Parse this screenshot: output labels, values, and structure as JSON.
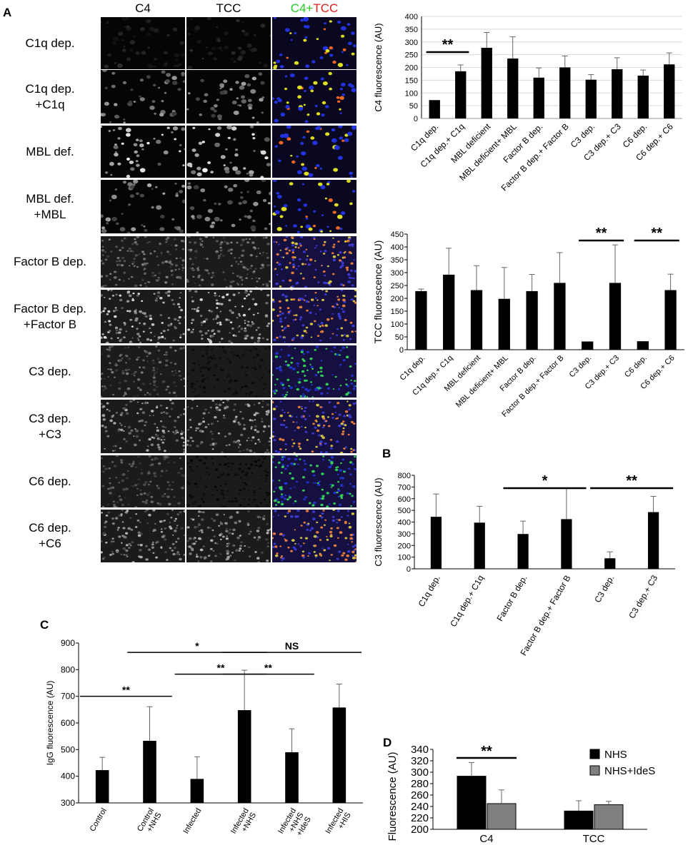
{
  "panelA": {
    "letter": "A",
    "column_headers": [
      "C4",
      "TCC"
    ],
    "merge_header": {
      "part1": "C4",
      "plus": "+",
      "part2": "TCC",
      "color1": "#22cc22",
      "color2": "#e02020"
    },
    "rows": [
      {
        "l1": "C1q dep.",
        "l2": ""
      },
      {
        "l1": "C1q dep.",
        "l2": "+C1q"
      },
      {
        "l1": "MBL def.",
        "l2": ""
      },
      {
        "l1": "MBL def.",
        "l2": "+MBL"
      },
      {
        "l1": "Factor B dep.",
        "l2": ""
      },
      {
        "l1": "Factor B dep.",
        "l2": "+Factor B"
      },
      {
        "l1": "C3 dep.",
        "l2": ""
      },
      {
        "l1": "C3 dep.",
        "l2": "+C3"
      },
      {
        "l1": "C6 dep.",
        "l2": ""
      },
      {
        "l1": "C6 dep.",
        "l2": "+C6"
      }
    ]
  },
  "letters": {
    "B": "B",
    "C": "C",
    "D": "D"
  },
  "chart_data": [
    {
      "id": "c4",
      "type": "bar",
      "ylabel": "C4 fluorescence (AU)",
      "ylim": [
        0,
        400
      ],
      "yticks": [
        0,
        50,
        100,
        150,
        200,
        250,
        300,
        350,
        400
      ],
      "categories": [
        "C1q dep.",
        "C1q dep.+ C1q",
        "MBL deficient",
        "MBL deficient+ MBL",
        "Factor B dep.",
        "Factor B dep.+ Factor B",
        "C3 dep.",
        "C3 dep.+ C3",
        "C6 dep.",
        "C6 dep.+ C6"
      ],
      "values": [
        72,
        185,
        277,
        235,
        160,
        200,
        152,
        193,
        168,
        212
      ],
      "errors": [
        0,
        25,
        60,
        85,
        38,
        45,
        20,
        45,
        22,
        45
      ],
      "significance": [
        {
          "from": 0,
          "to": 1,
          "y": 260,
          "label": "**"
        }
      ]
    },
    {
      "id": "tcc",
      "type": "bar",
      "ylabel": "TCC fluorescence (AU)",
      "ylim": [
        0,
        450
      ],
      "yticks": [
        0,
        50,
        100,
        150,
        200,
        250,
        300,
        350,
        400,
        450
      ],
      "categories": [
        "C1q dep.",
        "C1q dep.+ C1q",
        "MBL deficient",
        "MBL deficient+ MBL",
        "Factor B dep.",
        "Factor B dep.+ Factor B",
        "C3 dep.",
        "C3 dep.+ C3",
        "C6 dep.",
        "C6 dep.+ C6"
      ],
      "values": [
        228,
        292,
        232,
        198,
        228,
        260,
        32,
        260,
        33,
        232
      ],
      "errors": [
        8,
        103,
        95,
        122,
        65,
        118,
        0,
        148,
        0,
        62
      ],
      "significance": [
        {
          "from": 6,
          "to": 7,
          "y": 425,
          "label": "**"
        },
        {
          "from": 8,
          "to": 9,
          "y": 425,
          "label": "**"
        }
      ]
    },
    {
      "id": "c3",
      "type": "bar",
      "ylabel": "C3 fluorescence (AU)",
      "ylim": [
        0,
        800
      ],
      "yticks": [
        0,
        100,
        200,
        300,
        400,
        500,
        600,
        700,
        800
      ],
      "categories": [
        "C1q dep.",
        "C1q dep.+ C1q",
        "Factor B dep.",
        "Factor B dep.+ Factor B",
        "C3 dep.",
        "C3 dep.+ C3"
      ],
      "values": [
        445,
        395,
        298,
        425,
        90,
        485
      ],
      "errors": [
        195,
        140,
        110,
        265,
        55,
        135
      ],
      "significance": [
        {
          "from": 2,
          "to": 3,
          "y": 690,
          "label": "*"
        },
        {
          "from": 4,
          "to": 5,
          "y": 690,
          "label": "**"
        }
      ]
    },
    {
      "id": "igg",
      "type": "bar",
      "ylabel": "IgG fluorescence (AU)",
      "ylim": [
        300,
        900
      ],
      "yticks": [
        300,
        400,
        500,
        600,
        700,
        800,
        900
      ],
      "categories": [
        [
          "Control"
        ],
        [
          "Control",
          "+NHS"
        ],
        [
          "Infected"
        ],
        [
          "Infected",
          "+NHS"
        ],
        [
          "Infected",
          "+NHS",
          "+IdeS"
        ],
        [
          "Infected",
          "+HIS"
        ]
      ],
      "values": [
        423,
        533,
        390,
        648,
        490,
        658
      ],
      "errors": [
        48,
        128,
        83,
        150,
        88,
        88
      ],
      "significance": [
        {
          "from": 0,
          "to": 1,
          "y": 700,
          "label": "**"
        },
        {
          "from": 2,
          "to": 3,
          "y": 783,
          "label": "**"
        },
        {
          "from": 3,
          "to": 4,
          "y": 783,
          "label": "**"
        },
        {
          "from": 1,
          "to": 3,
          "y": 865,
          "label": "*"
        },
        {
          "from": 3,
          "to": 5,
          "y": 865,
          "label": "NS"
        }
      ]
    },
    {
      "id": "d",
      "type": "bar",
      "ylabel": "Fluorescence (AU)",
      "ylim": [
        200,
        340
      ],
      "yticks": [
        200,
        220,
        240,
        260,
        280,
        300,
        320,
        340
      ],
      "categories": [
        "C4",
        "TCC"
      ],
      "series": [
        {
          "name": "NHS",
          "color": "#000000",
          "values": [
            293,
            232
          ],
          "errors": [
            24,
            18
          ]
        },
        {
          "name": "NHS+IdeS",
          "color": "#808080",
          "values": [
            245,
            243
          ],
          "errors": [
            24,
            6
          ]
        }
      ],
      "legend": "top-right",
      "significance": [
        {
          "group": 0,
          "y": 325,
          "label": "**"
        }
      ]
    }
  ]
}
